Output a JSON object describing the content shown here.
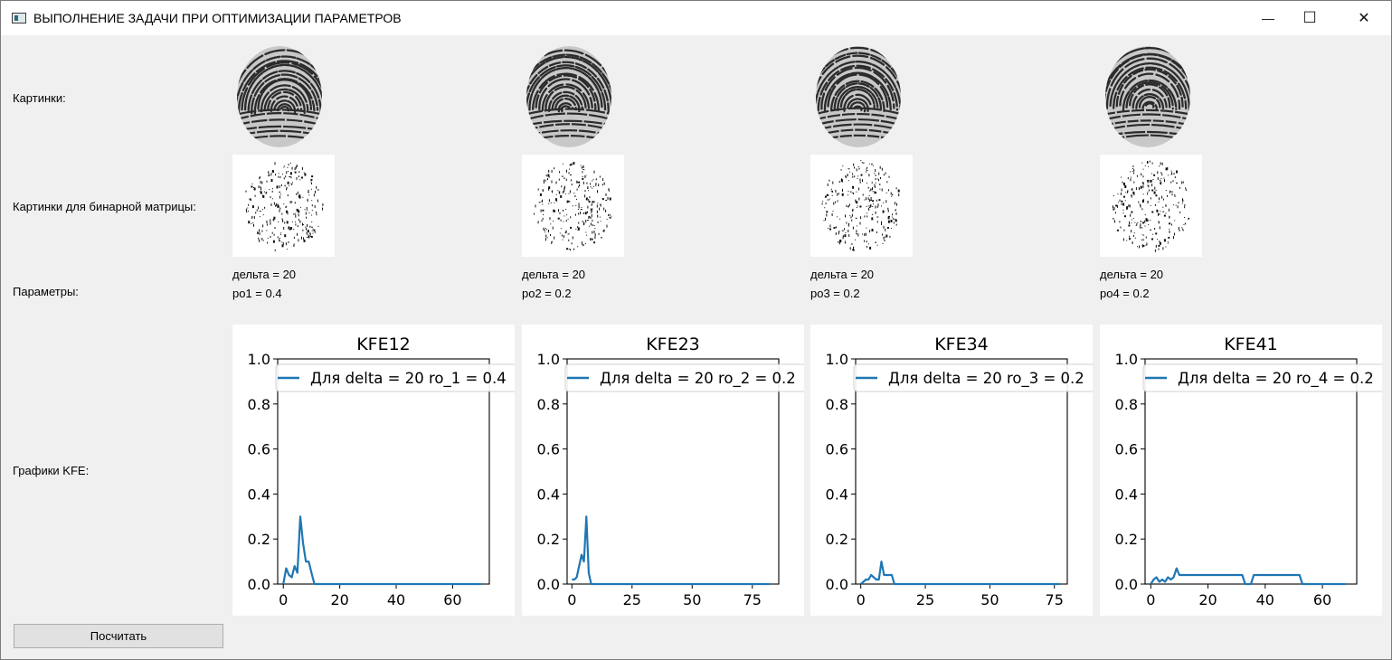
{
  "window": {
    "title": "ВЫПОЛНЕНИЕ ЗАДАЧИ ПРИ ОПТИМИЗАЦИИ ПАРАМЕТРОВ",
    "minimize_glyph": "—",
    "maximize_glyph": "☐",
    "close_glyph": "✕"
  },
  "labels": {
    "pictures": "Картинки:",
    "binary_pictures": "Картинки для бинарной матрицы:",
    "parameters": "Параметры:",
    "graphs": "Графики KFE:"
  },
  "columns": [
    {
      "delta_text": "дельта = 20",
      "ro_text": "ро1 = 0.4"
    },
    {
      "delta_text": "дельта = 20",
      "ro_text": "ро2 = 0.2"
    },
    {
      "delta_text": "дельта = 20",
      "ro_text": "ро3 = 0.2"
    },
    {
      "delta_text": "дельта = 20",
      "ro_text": "ро4 = 0.2"
    }
  ],
  "button": {
    "label": "Посчитать"
  },
  "colors": {
    "line": "#1f77b4",
    "window_bg": "#f0f0f0",
    "button_bg": "#e1e1e1"
  },
  "chart_data": [
    {
      "type": "line",
      "title": "KFE12",
      "xlabel": "",
      "ylabel": "",
      "xlim": [
        -2,
        73
      ],
      "ylim": [
        0,
        1.0
      ],
      "xticks": [
        0,
        20,
        40,
        60
      ],
      "yticks": [
        0.0,
        0.2,
        0.4,
        0.6,
        0.8,
        1.0
      ],
      "grid": false,
      "legend_position": "top",
      "series": [
        {
          "name": "Для delta = 20 ro_1 = 0.4",
          "x": [
            0,
            1,
            2,
            3,
            4,
            5,
            6,
            7,
            8,
            9,
            10,
            11,
            12,
            15,
            20,
            30,
            40,
            50,
            60,
            70
          ],
          "y": [
            0,
            0.07,
            0.04,
            0.03,
            0.08,
            0.05,
            0.3,
            0.18,
            0.1,
            0.1,
            0.05,
            0,
            0,
            0,
            0,
            0,
            0,
            0,
            0,
            0
          ]
        }
      ]
    },
    {
      "type": "line",
      "title": "KFE23",
      "xlabel": "",
      "ylabel": "",
      "xlim": [
        -2,
        86
      ],
      "ylim": [
        0,
        1.0
      ],
      "xticks": [
        0,
        25,
        50,
        75
      ],
      "yticks": [
        0.0,
        0.2,
        0.4,
        0.6,
        0.8,
        1.0
      ],
      "grid": false,
      "legend_position": "top",
      "series": [
        {
          "name": "Для delta = 20 ro_2 = 0.2",
          "x": [
            0,
            1,
            2,
            3,
            4,
            5,
            6,
            7,
            8,
            9,
            10,
            20,
            40,
            60,
            82
          ],
          "y": [
            0.02,
            0.02,
            0.03,
            0.08,
            0.13,
            0.1,
            0.3,
            0.05,
            0,
            0,
            0,
            0,
            0,
            0,
            0
          ]
        }
      ]
    },
    {
      "type": "line",
      "title": "KFE34",
      "xlabel": "",
      "ylabel": "",
      "xlim": [
        -2,
        80
      ],
      "ylim": [
        0,
        1.0
      ],
      "xticks": [
        0,
        25,
        50,
        75
      ],
      "yticks": [
        0.0,
        0.2,
        0.4,
        0.6,
        0.8,
        1.0
      ],
      "grid": false,
      "legend_position": "top",
      "series": [
        {
          "name": "Для delta = 20 ro_3 = 0.2",
          "x": [
            0,
            1,
            2,
            3,
            4,
            5,
            6,
            7,
            8,
            9,
            10,
            11,
            12,
            13,
            14,
            20,
            40,
            60,
            77
          ],
          "y": [
            0,
            0.01,
            0.02,
            0.02,
            0.04,
            0.03,
            0.02,
            0.02,
            0.1,
            0.04,
            0.04,
            0.04,
            0.04,
            0,
            0,
            0,
            0,
            0,
            0
          ]
        }
      ]
    },
    {
      "type": "line",
      "title": "KFE41",
      "xlabel": "",
      "ylabel": "",
      "xlim": [
        -2,
        72
      ],
      "ylim": [
        0,
        1.0
      ],
      "xticks": [
        0,
        20,
        40,
        60
      ],
      "yticks": [
        0.0,
        0.2,
        0.4,
        0.6,
        0.8,
        1.0
      ],
      "grid": false,
      "legend_position": "top",
      "series": [
        {
          "name": "Для delta = 20 ro_4 = 0.2",
          "x": [
            0,
            1,
            2,
            3,
            4,
            5,
            6,
            7,
            8,
            9,
            10,
            15,
            20,
            25,
            30,
            32,
            33,
            35,
            36,
            40,
            45,
            50,
            52,
            53,
            55,
            60,
            65,
            68
          ],
          "y": [
            0,
            0.02,
            0.03,
            0.01,
            0.02,
            0.01,
            0.03,
            0.02,
            0.03,
            0.07,
            0.04,
            0.04,
            0.04,
            0.04,
            0.04,
            0.04,
            0,
            0,
            0.04,
            0.04,
            0.04,
            0.04,
            0.04,
            0,
            0,
            0,
            0,
            0
          ]
        }
      ]
    }
  ]
}
